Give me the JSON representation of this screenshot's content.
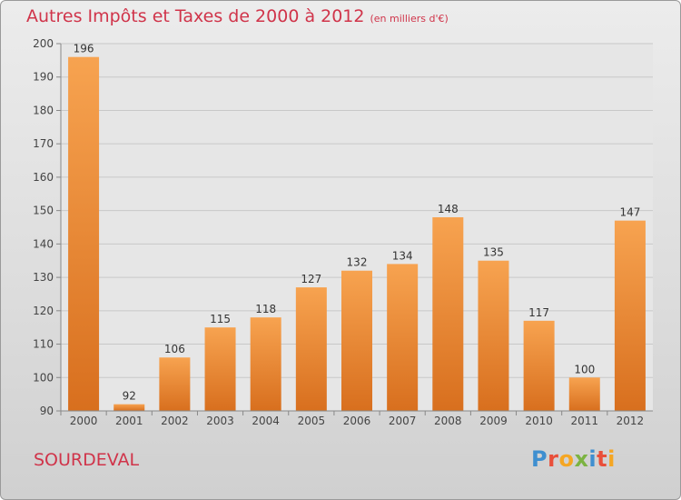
{
  "header": {
    "title": "Autres Impôts et Taxes de 2000 à 2012",
    "unit_note": "(en milliers d'€)"
  },
  "footer": {
    "location": "SOURDEVAL",
    "logo_text": "Proxiti"
  },
  "colors": {
    "accent": "#d0344a",
    "bar_light": "#f7a24e",
    "bar_dark": "#d86f1e"
  },
  "chart_data": {
    "type": "bar",
    "title": "Autres Impôts et Taxes de 2000 à 2012",
    "subtitle": "(en milliers d'€)",
    "xlabel": "",
    "ylabel": "",
    "categories": [
      "2000",
      "2001",
      "2002",
      "2003",
      "2004",
      "2005",
      "2006",
      "2007",
      "2008",
      "2009",
      "2010",
      "2011",
      "2012"
    ],
    "values": [
      196,
      92,
      106,
      115,
      118,
      127,
      132,
      134,
      148,
      135,
      117,
      100,
      147
    ],
    "ylim": [
      90,
      200
    ],
    "yticks": [
      90,
      100,
      110,
      120,
      130,
      140,
      150,
      160,
      170,
      180,
      190,
      200
    ],
    "grid": true,
    "legend": "none"
  }
}
